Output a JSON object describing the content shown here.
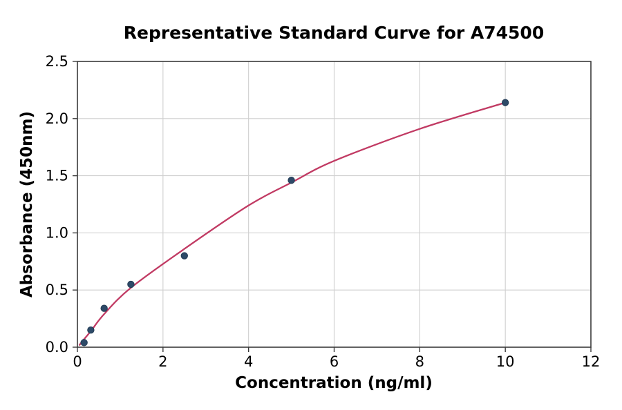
{
  "chart_data": {
    "type": "scatter",
    "title": "Representative Standard Curve for A74500",
    "xlabel": "Concentration (ng/ml)",
    "ylabel": "Absorbance (450nm)",
    "xlim": [
      0,
      12
    ],
    "ylim": [
      0,
      2.5
    ],
    "x_tick_labels": [
      "0",
      "2",
      "4",
      "6",
      "8",
      "10",
      "12"
    ],
    "y_tick_labels": [
      "0.0",
      "0.5",
      "1.0",
      "1.5",
      "2.0",
      "2.5"
    ],
    "grid": true,
    "legend": "none",
    "series": [
      {
        "name": "standard-points",
        "type": "scatter",
        "x": [
          0.156,
          0.313,
          0.625,
          1.25,
          2.5,
          5,
          10
        ],
        "y": [
          0.04,
          0.15,
          0.34,
          0.55,
          0.8,
          1.46,
          2.14
        ]
      },
      {
        "name": "fitted-curve",
        "type": "line",
        "x": [
          0.05,
          0.156,
          0.313,
          0.625,
          1.25,
          2.5,
          4,
          5,
          6,
          8,
          10
        ],
        "y": [
          0.02,
          0.07,
          0.14,
          0.29,
          0.52,
          0.86,
          1.24,
          1.44,
          1.63,
          1.91,
          2.14
        ]
      }
    ],
    "colors": {
      "marker": "#2d4a68",
      "marker_edge": "#243c55",
      "curve": "#c13a63",
      "grid": "#cfcfcf",
      "spine": "#3a3a3a",
      "text": "#000000",
      "background": "#ffffff"
    }
  }
}
